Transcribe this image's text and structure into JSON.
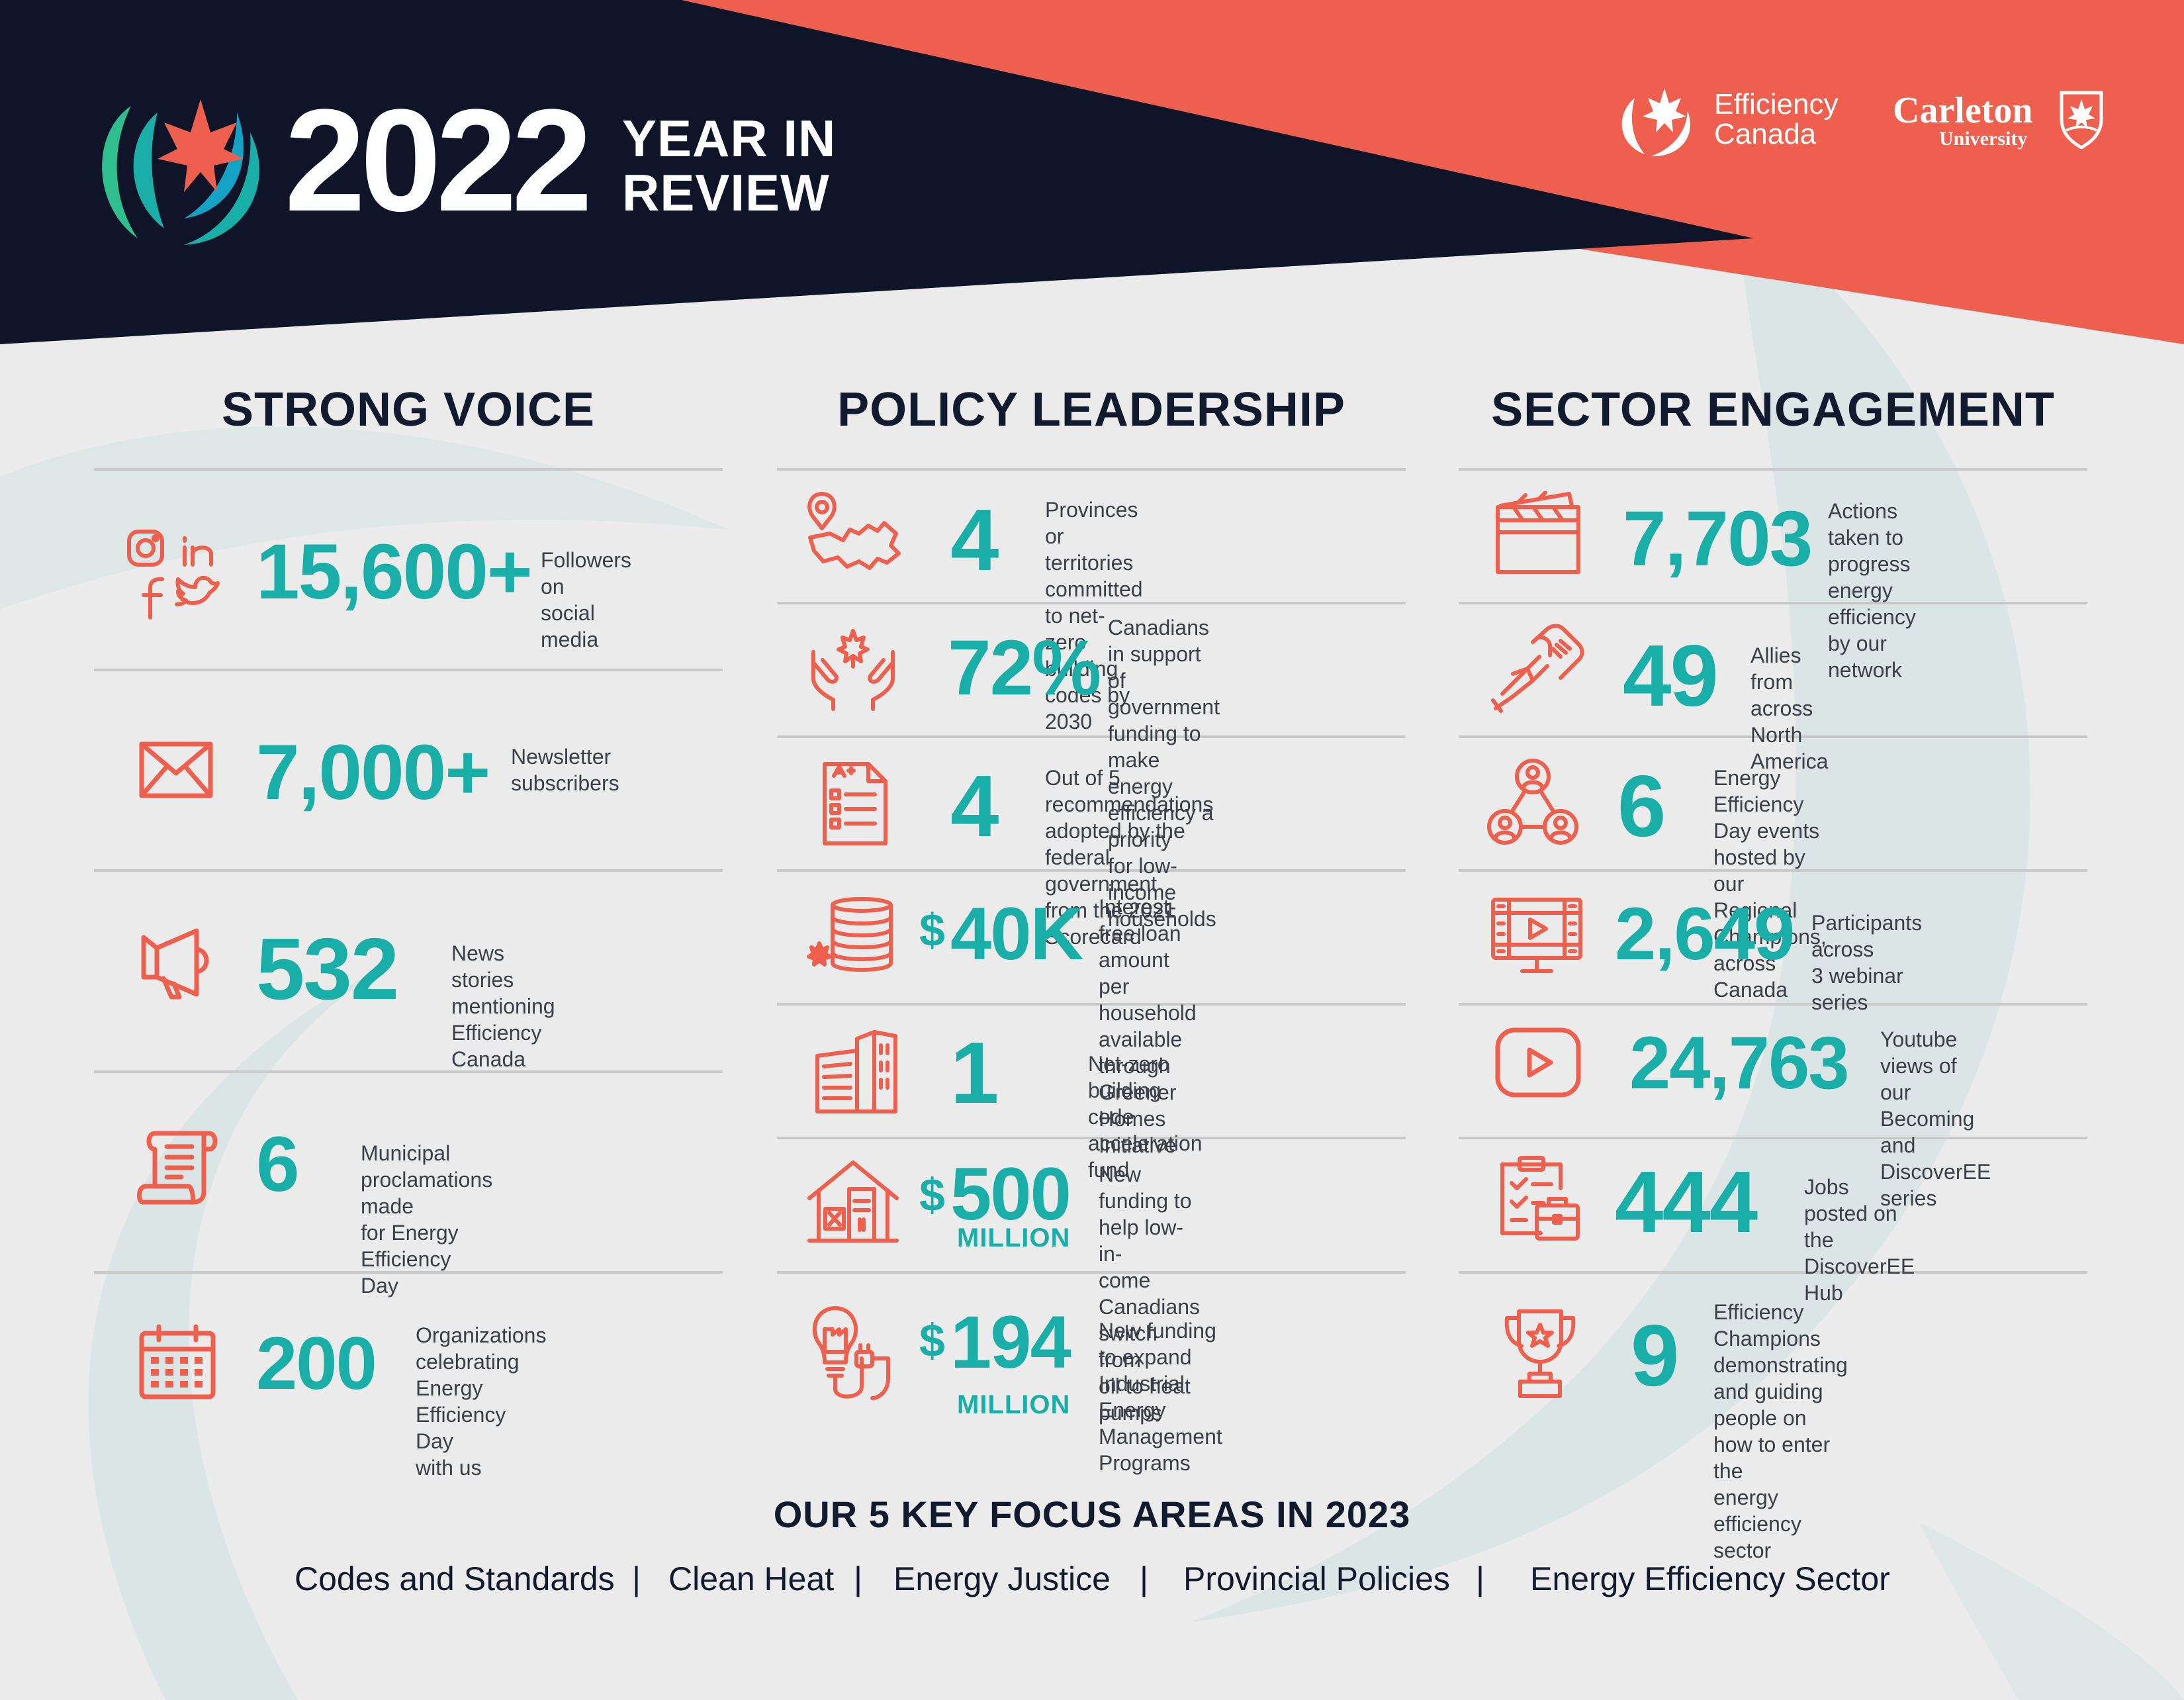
{
  "header": {
    "year": "2022",
    "title_line1": "YEAR IN",
    "title_line2": "REVIEW",
    "partner1_line1": "Efficiency",
    "partner1_line2": "Canada",
    "partner2_name": "Carleton",
    "partner2_sub": "University"
  },
  "colors": {
    "navy": "#0f1428",
    "coral": "#ef5f4e",
    "teal": "#1aaea9",
    "background": "#ebebeb"
  },
  "columns": {
    "strong_voice": {
      "heading": "STRONG VOICE",
      "stats": [
        {
          "icon": "social-media-icon",
          "number": "15,600+",
          "desc1": "Followers on",
          "desc2": "social media"
        },
        {
          "icon": "envelope-icon",
          "number": "7,000+",
          "desc1": "Newsletter",
          "desc2": "subscribers"
        },
        {
          "icon": "megaphone-icon",
          "number": "532",
          "desc1": "News stories mentioning",
          "desc2": "Efficiency Canada"
        },
        {
          "icon": "scroll-icon",
          "number": "6",
          "desc1": "Municipal proclamations made",
          "desc2": "for Energy Efficiency Day"
        },
        {
          "icon": "calendar-icon",
          "number": "200",
          "desc1": "Organizations celebrating",
          "desc2": "Energy Efficiency Day",
          "desc3": "with us"
        }
      ]
    },
    "policy_leadership": {
      "heading": "POLICY LEADERSHIP",
      "stats": [
        {
          "icon": "canada-map-icon",
          "number": "4",
          "desc1": "Provinces or territories",
          "desc2": "committed to net-zero",
          "desc3": "building codes by 2030"
        },
        {
          "icon": "hands-maple-icon",
          "number": "72%",
          "desc1": "Canadians in support of",
          "desc2": "government funding to make",
          "desc3": "energy efficiency a priority",
          "desc4": "for low-income households"
        },
        {
          "icon": "report-card-icon",
          "number": "4",
          "desc1": "Out of 5 recommendations",
          "desc2": "adopted by the federal government",
          "desc3": "from the 2021 Scorecard"
        },
        {
          "icon": "coins-icon",
          "prefix": "$",
          "number": "40K",
          "desc1": "Interest-free loan amount per",
          "desc2": "household available through",
          "desc3": "Greener Homes Initiative"
        },
        {
          "icon": "building-icon",
          "number": "1",
          "desc1": "Net-zero building code",
          "desc2": "acceleration fund"
        },
        {
          "icon": "heat-pump-house-icon",
          "prefix": "$",
          "number": "500",
          "unit": "MILLION",
          "desc1": "New funding to help low-in-",
          "desc2": "come Canadians switch from",
          "desc3": "oil to heat pumps"
        },
        {
          "icon": "industry-plug-icon",
          "prefix": "$",
          "number": "194",
          "unit": "MILLION",
          "desc1": "New funding to expand",
          "desc2": "Industrial Energy Management",
          "desc3": "Programs"
        }
      ]
    },
    "sector_engagement": {
      "heading": "SECTOR ENGAGEMENT",
      "stats": [
        {
          "icon": "clapperboard-icon",
          "number": "7,703",
          "desc1": "Actions taken to progress",
          "desc2": "energy efficiency by our",
          "desc3": "network"
        },
        {
          "icon": "handshake-icon",
          "number": "49",
          "desc1": "Allies from across",
          "desc2": "North America"
        },
        {
          "icon": "network-people-icon",
          "number": "6",
          "desc1": "Energy Efficiency Day events",
          "desc2": "hosted by our Regional Champions,",
          "desc3": "across Canada"
        },
        {
          "icon": "webinar-monitor-icon",
          "number": "2,649",
          "desc1": "Participants across",
          "desc2": "3 webinar series"
        },
        {
          "icon": "youtube-icon",
          "number": "24,763",
          "desc1": "Youtube views of",
          "desc2": "our Becoming and",
          "desc3": "DiscoverEE series"
        },
        {
          "icon": "job-board-icon",
          "number": "444",
          "desc1": "Jobs posted on the",
          "desc2": "DiscoverEE Hub"
        },
        {
          "icon": "trophy-icon",
          "number": "9",
          "desc1": "Efficiency Champions",
          "desc2": "demonstrating and guiding",
          "desc3": "people on how to enter the",
          "desc4": "energy efficiency sector"
        }
      ]
    }
  },
  "focus": {
    "title": "OUR 5 KEY FOCUS AREAS IN 2023",
    "items": [
      "Codes and Standards",
      "Clean Heat",
      "Energy Justice",
      "Provincial Policies",
      "Energy Efficiency Sector"
    ],
    "separator": "|"
  }
}
